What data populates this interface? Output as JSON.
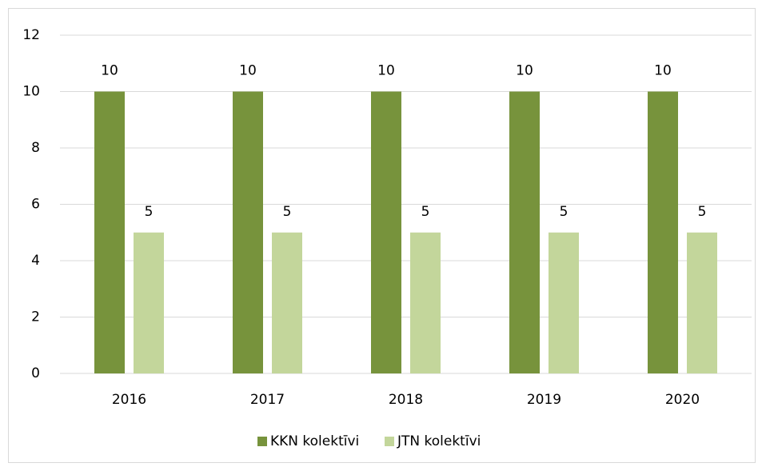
{
  "chart_data": {
    "type": "bar",
    "categories": [
      "2016",
      "2017",
      "2018",
      "2019",
      "2020"
    ],
    "series": [
      {
        "name": "KKN kolektīvi",
        "color": "#77933c",
        "values": [
          10,
          10,
          10,
          10,
          10
        ]
      },
      {
        "name": "JTN kolektīvi",
        "color": "#c3d69b",
        "values": [
          5,
          5,
          5,
          5,
          5
        ]
      }
    ],
    "ylim": [
      0,
      12
    ],
    "yticks": [
      0,
      2,
      4,
      6,
      8,
      10,
      12
    ],
    "grid": true,
    "legend": "bottom"
  }
}
